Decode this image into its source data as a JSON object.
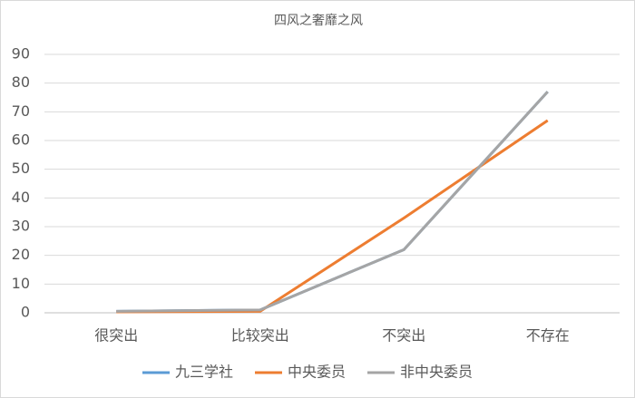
{
  "chart_data": {
    "type": "line",
    "title": "四风之奢靡之风",
    "categories": [
      "很突出",
      "比较突出",
      "不突出",
      "不存在"
    ],
    "series": [
      {
        "name": "九三学社",
        "color": "#5b9bd5",
        "values": [
          0.5,
          1,
          22,
          77
        ]
      },
      {
        "name": "中央委员",
        "color": "#ed7d31",
        "values": [
          0.3,
          0.5,
          33,
          67
        ]
      },
      {
        "name": "非中央委员",
        "color": "#a5a5a5",
        "values": [
          0.5,
          1,
          22,
          77
        ]
      }
    ],
    "ylim": [
      0,
      90
    ],
    "yticks": [
      0,
      10,
      20,
      30,
      40,
      50,
      60,
      70,
      80,
      90
    ],
    "grid": true,
    "legend": "bottom"
  }
}
